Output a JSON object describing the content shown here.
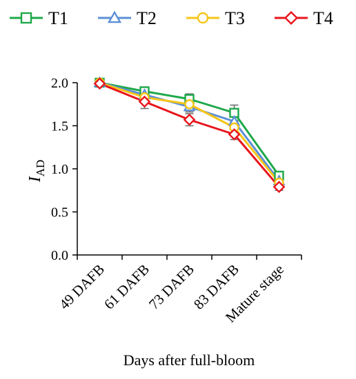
{
  "chart_data": {
    "type": "line",
    "categories": [
      "49 DAFB",
      "61 DAFB",
      "73 DAFB",
      "83 DAFB",
      "Mature stage"
    ],
    "xlabel": "Days after full-bloom",
    "ylabel": {
      "base": "I",
      "sub": "AD"
    },
    "ylim": [
      0.0,
      2.0
    ],
    "yticks": [
      "0.0",
      "0.5",
      "1.0",
      "1.5",
      "2.0"
    ],
    "grid": false,
    "legend_position": "top",
    "series": [
      {
        "name": "T1",
        "color": "#1fa84a",
        "marker": "square",
        "values": [
          2.0,
          1.9,
          1.81,
          1.65,
          0.92
        ],
        "errors": [
          0.02,
          0.05,
          0.06,
          0.09,
          0.04
        ]
      },
      {
        "name": "T2",
        "color": "#5b8fd6",
        "marker": "triangle",
        "values": [
          2.0,
          1.86,
          1.72,
          1.55,
          0.86
        ],
        "errors": [
          0.02,
          0.05,
          0.06,
          0.07,
          0.04
        ]
      },
      {
        "name": "T3",
        "color": "#f5c518",
        "marker": "circle",
        "values": [
          2.0,
          1.83,
          1.75,
          1.48,
          0.84
        ],
        "errors": [
          0.02,
          0.05,
          0.05,
          0.07,
          0.04
        ]
      },
      {
        "name": "T4",
        "color": "#e8141c",
        "marker": "diamond",
        "values": [
          1.99,
          1.78,
          1.57,
          1.4,
          0.79
        ],
        "errors": [
          0.02,
          0.08,
          0.07,
          0.06,
          0.04
        ]
      }
    ]
  }
}
